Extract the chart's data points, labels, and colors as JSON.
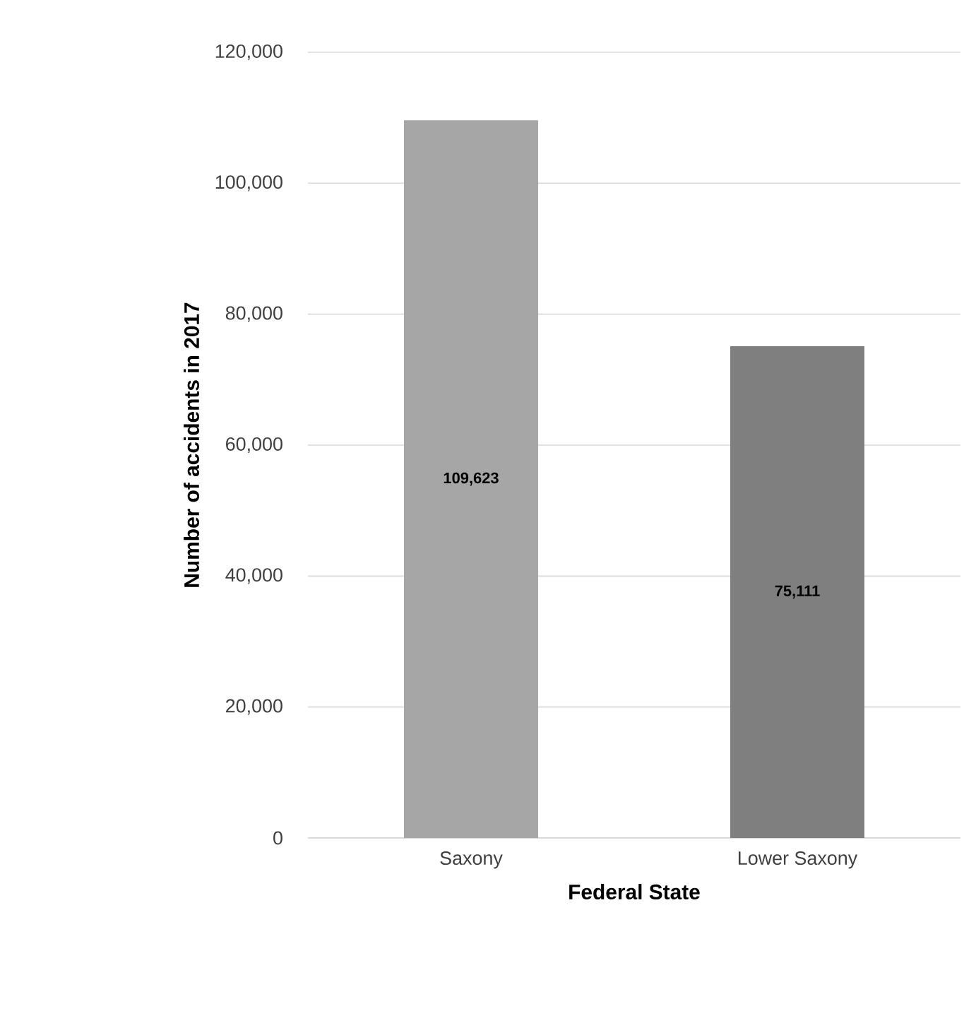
{
  "chart_data": {
    "type": "bar",
    "xlabel": "Federal State",
    "ylabel": "Number of accidents in 2017",
    "categories": [
      "Saxony",
      "Lower Saxony"
    ],
    "values": [
      109623,
      75111
    ],
    "colors": [
      "#a6a6a6",
      "#7f7f7f"
    ],
    "value_labels": [
      "109,623",
      "75,111"
    ],
    "ylim": [
      0,
      120000
    ],
    "yticks": [
      0,
      {
        "value": 20000,
        "label": "20,000"
      },
      {
        "value": 40000,
        "label": "40,000"
      },
      {
        "value": 60000,
        "label": "60,000"
      },
      {
        "value": 80000,
        "label": "80,000"
      },
      {
        "value": 100000,
        "label": "100,000"
      },
      {
        "value": 120000,
        "label": "120,000"
      }
    ],
    "grid": "y"
  }
}
